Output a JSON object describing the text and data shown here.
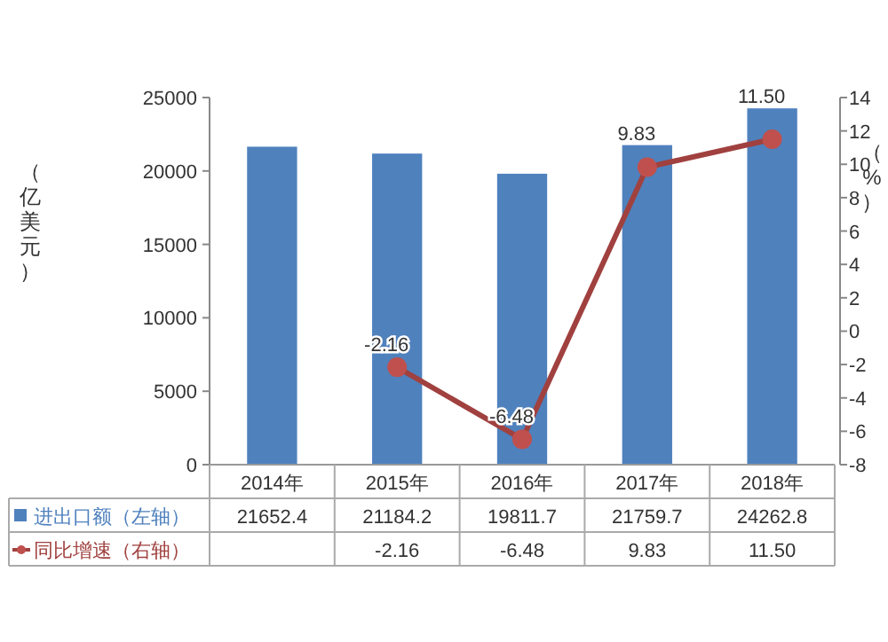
{
  "chart_data": {
    "type": "bar",
    "ylabel": "（亿美元）",
    "y2label": "（%）",
    "categories": [
      "2014年",
      "2015年",
      "2016年",
      "2017年",
      "2018年"
    ],
    "series": [
      {
        "name": "进出口额（左轴）",
        "color": "#4f81bd",
        "values": [
          21652.4,
          21184.2,
          19811.7,
          21759.7,
          24262.8
        ],
        "value_labels": [
          "21652.4",
          "21184.2",
          "19811.7",
          "21759.7",
          "24262.8"
        ]
      },
      {
        "name": "同比增速（右轴）",
        "type": "line",
        "axis": "y2",
        "color": "#a0413f",
        "marker": "circle",
        "values": [
          null,
          -2.16,
          -6.48,
          9.83,
          11.5
        ],
        "value_labels": [
          null,
          "-2.16",
          "-6.48",
          "9.83",
          "11.50"
        ]
      }
    ],
    "ylim": [
      0,
      25000
    ],
    "yticks": [
      0,
      5000,
      10000,
      15000,
      20000,
      25000
    ],
    "y2lim": [
      -8,
      14
    ],
    "y2ticks": [
      -8,
      -6,
      -4,
      -2,
      0,
      2,
      4,
      6,
      8,
      10,
      12,
      14
    ],
    "grid": false,
    "legend": "bottom left"
  }
}
